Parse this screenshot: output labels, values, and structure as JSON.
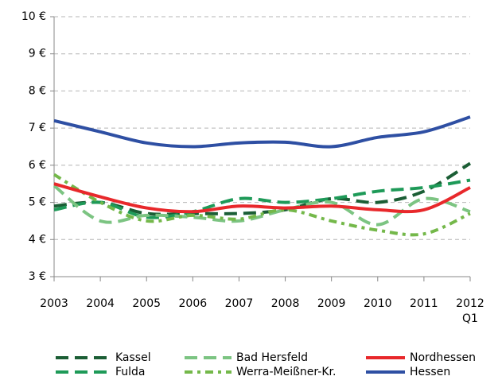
{
  "chart_data": {
    "type": "line",
    "categories": [
      "2003",
      "2004",
      "2005",
      "2006",
      "2007",
      "2008",
      "2009",
      "2010",
      "2011",
      "2012 Q1"
    ],
    "ylim": [
      3,
      10
    ],
    "yticks": [
      {
        "value": 3,
        "label": "3 €"
      },
      {
        "value": 4,
        "label": "4 €"
      },
      {
        "value": 5,
        "label": "5 €"
      },
      {
        "value": 6,
        "label": "6 €"
      },
      {
        "value": 7,
        "label": "7 €"
      },
      {
        "value": 8,
        "label": "8 €"
      },
      {
        "value": 9,
        "label": "9 €"
      },
      {
        "value": 10,
        "label": "10 €"
      }
    ],
    "grid": true,
    "series": [
      {
        "name": "Kassel",
        "color": "#1b5e35",
        "linestyle": "dashed",
        "values": [
          4.9,
          5.0,
          4.7,
          4.7,
          4.7,
          4.8,
          5.1,
          5.0,
          5.3,
          6.05
        ]
      },
      {
        "name": "Fulda",
        "color": "#1e9a58",
        "linestyle": "dashed",
        "values": [
          4.8,
          5.0,
          4.6,
          4.75,
          5.1,
          5.0,
          5.1,
          5.3,
          5.4,
          5.6
        ]
      },
      {
        "name": "Bad Hersfeld",
        "color": "#7cc482",
        "linestyle": "dashed",
        "values": [
          5.45,
          4.5,
          4.65,
          4.6,
          4.5,
          4.8,
          5.0,
          4.4,
          5.1,
          4.75
        ]
      },
      {
        "name": "Werra-Meißner-Kr.",
        "color": "#74b84a",
        "linestyle": "dashdot",
        "values": [
          5.75,
          5.0,
          4.5,
          4.65,
          4.55,
          4.8,
          4.5,
          4.25,
          4.15,
          4.7
        ]
      },
      {
        "name": "Nordhessen",
        "color": "#e8282b",
        "linestyle": "solid",
        "values": [
          5.5,
          5.15,
          4.85,
          4.75,
          4.9,
          4.85,
          4.9,
          4.8,
          4.8,
          5.4
        ]
      },
      {
        "name": "Hessen",
        "color": "#2e4fa3",
        "linestyle": "solid",
        "values": [
          7.2,
          6.9,
          6.6,
          6.5,
          6.6,
          6.62,
          6.5,
          6.75,
          6.9,
          7.3
        ]
      }
    ]
  }
}
